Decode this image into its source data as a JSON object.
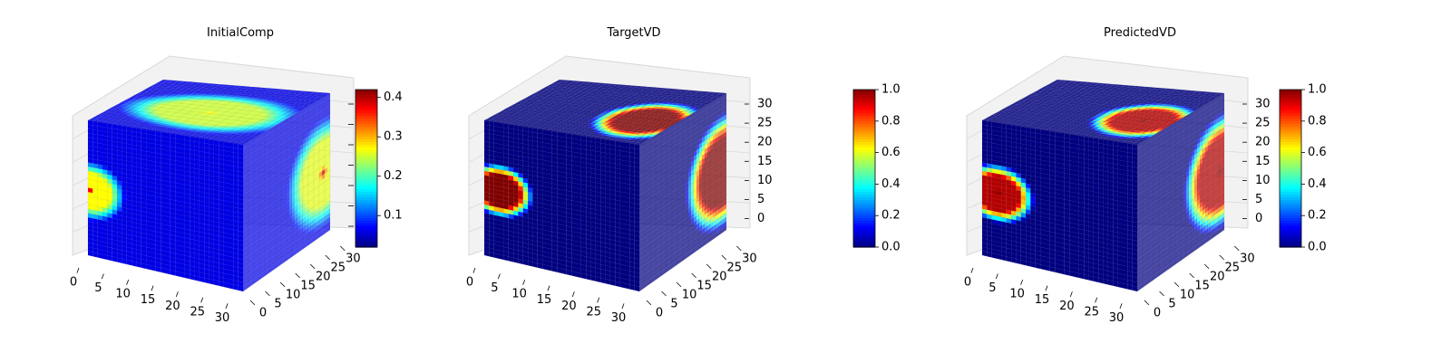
{
  "figure": {
    "colormap": "jet",
    "face_color": "#000080",
    "pane_color": "#f2f2f2",
    "grid_color": "#d9d9d9"
  },
  "chart_data": [
    {
      "type": "heatmap",
      "subtype": "3d-voxel-cube",
      "title": "InitialComp",
      "xlim": [
        0,
        32
      ],
      "ylim": [
        0,
        32
      ],
      "zlim": [
        0,
        32
      ],
      "x_ticks": [
        "0",
        "5",
        "10",
        "15",
        "20",
        "25",
        "30"
      ],
      "y_ticks": [
        "0",
        "5",
        "10",
        "15",
        "20",
        "25",
        "30"
      ],
      "z_ticks": [],
      "colorbar": {
        "min": 0.02,
        "max": 0.42,
        "ticks": [
          "0.1",
          "0.2",
          "0.3",
          "0.4"
        ],
        "tick_values": [
          0.1,
          0.2,
          0.3,
          0.4
        ]
      },
      "blobs": [
        {
          "face": "front",
          "u": 0.02,
          "v": 0.52,
          "ru": 0.22,
          "rv": 0.22,
          "peak": 0.4,
          "core": 0.27
        },
        {
          "face": "top",
          "u": 0.45,
          "v": 0.55,
          "ru": 0.38,
          "rv": 0.55,
          "peak": 0.27,
          "core": 0.25
        },
        {
          "face": "right",
          "u": 0.92,
          "v": 0.55,
          "ru": 0.42,
          "rv": 0.4,
          "peak": 0.4,
          "core": 0.26
        }
      ],
      "background_value": 0.06
    },
    {
      "type": "heatmap",
      "subtype": "3d-voxel-cube",
      "title": "TargetVD",
      "xlim": [
        0,
        32
      ],
      "ylim": [
        0,
        32
      ],
      "zlim": [
        0,
        32
      ],
      "x_ticks": [
        "0",
        "5",
        "10",
        "15",
        "20",
        "25",
        "30"
      ],
      "y_ticks": [
        "0",
        "5",
        "10",
        "15",
        "20",
        "25",
        "30"
      ],
      "z_ticks": [
        "0",
        "5",
        "10",
        "15",
        "20",
        "25",
        "30"
      ],
      "colorbar": {
        "min": 0.0,
        "max": 1.0,
        "ticks": [
          "0.0",
          "0.2",
          "0.4",
          "0.6",
          "0.8",
          "1.0"
        ],
        "tick_values": [
          0,
          0.2,
          0.4,
          0.6,
          0.8,
          1.0
        ]
      },
      "blobs": [
        {
          "face": "front",
          "u": 0.1,
          "v": 0.5,
          "ru": 0.22,
          "rv": 0.2,
          "peak": 1.0,
          "core": 1.0
        },
        {
          "face": "top",
          "u": 0.4,
          "v": 0.82,
          "ru": 0.36,
          "rv": 0.3,
          "peak": 1.0,
          "core": 1.0
        },
        {
          "face": "right",
          "u": 0.95,
          "v": 0.55,
          "ru": 0.42,
          "rv": 0.42,
          "peak": 1.0,
          "core": 1.0
        }
      ],
      "background_value": 0.0
    },
    {
      "type": "heatmap",
      "subtype": "3d-voxel-cube",
      "title": "PredictedVD",
      "xlim": [
        0,
        32
      ],
      "ylim": [
        0,
        32
      ],
      "zlim": [
        0,
        32
      ],
      "x_ticks": [
        "0",
        "5",
        "10",
        "15",
        "20",
        "25",
        "30"
      ],
      "y_ticks": [
        "0",
        "5",
        "10",
        "15",
        "20",
        "25",
        "30"
      ],
      "z_ticks": [
        "0",
        "5",
        "10",
        "15",
        "20",
        "25",
        "30"
      ],
      "colorbar": {
        "min": 0.0,
        "max": 1.0,
        "ticks": [
          "0.0",
          "0.2",
          "0.4",
          "0.6",
          "0.8",
          "1.0"
        ],
        "tick_values": [
          0,
          0.2,
          0.4,
          0.6,
          0.8,
          1.0
        ]
      },
      "blobs": [
        {
          "face": "front",
          "u": 0.1,
          "v": 0.52,
          "ru": 0.24,
          "rv": 0.22,
          "peak": 1.0,
          "core": 0.95
        },
        {
          "face": "top",
          "u": 0.4,
          "v": 0.82,
          "ru": 0.34,
          "rv": 0.3,
          "peak": 1.0,
          "core": 0.95
        },
        {
          "face": "right",
          "u": 0.95,
          "v": 0.55,
          "ru": 0.42,
          "rv": 0.42,
          "peak": 1.0,
          "core": 0.95
        }
      ],
      "background_value": 0.0
    }
  ]
}
